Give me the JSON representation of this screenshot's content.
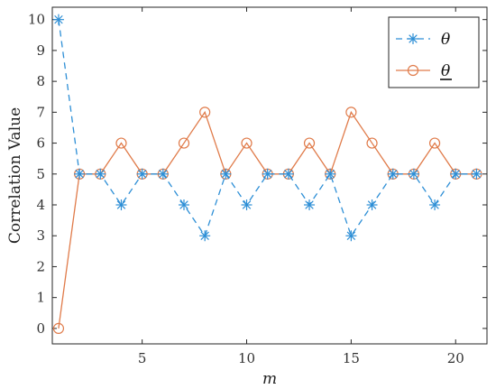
{
  "chart_data": {
    "type": "line",
    "title": "",
    "xlabel": "m",
    "ylabel": "Correlation Value",
    "xlim": [
      0.7,
      21.5
    ],
    "ylim": [
      -0.5,
      10.4
    ],
    "xticks": [
      5,
      10,
      15,
      20
    ],
    "yticks": [
      0,
      1,
      2,
      3,
      4,
      5,
      6,
      7,
      8,
      9,
      10
    ],
    "grid": false,
    "legend_position": "top-right",
    "x": [
      1,
      2,
      3,
      4,
      5,
      6,
      7,
      8,
      9,
      10,
      11,
      12,
      13,
      14,
      15,
      16,
      17,
      18,
      19,
      20,
      21
    ],
    "series": [
      {
        "name": "θ",
        "underlined": false,
        "marker": "star",
        "line_style": "dashed",
        "color": "#2E8FD6",
        "values": [
          10,
          5,
          5,
          4,
          5,
          5,
          4,
          3,
          5,
          4,
          5,
          5,
          4,
          5,
          3,
          4,
          5,
          5,
          4,
          5,
          5
        ]
      },
      {
        "name": "θ",
        "underlined": true,
        "marker": "circle",
        "line_style": "solid",
        "color": "#E07B4A",
        "values": [
          0,
          5,
          5,
          6,
          5,
          5,
          6,
          7,
          5,
          6,
          5,
          5,
          6,
          5,
          7,
          6,
          5,
          5,
          6,
          5,
          5
        ]
      }
    ]
  }
}
